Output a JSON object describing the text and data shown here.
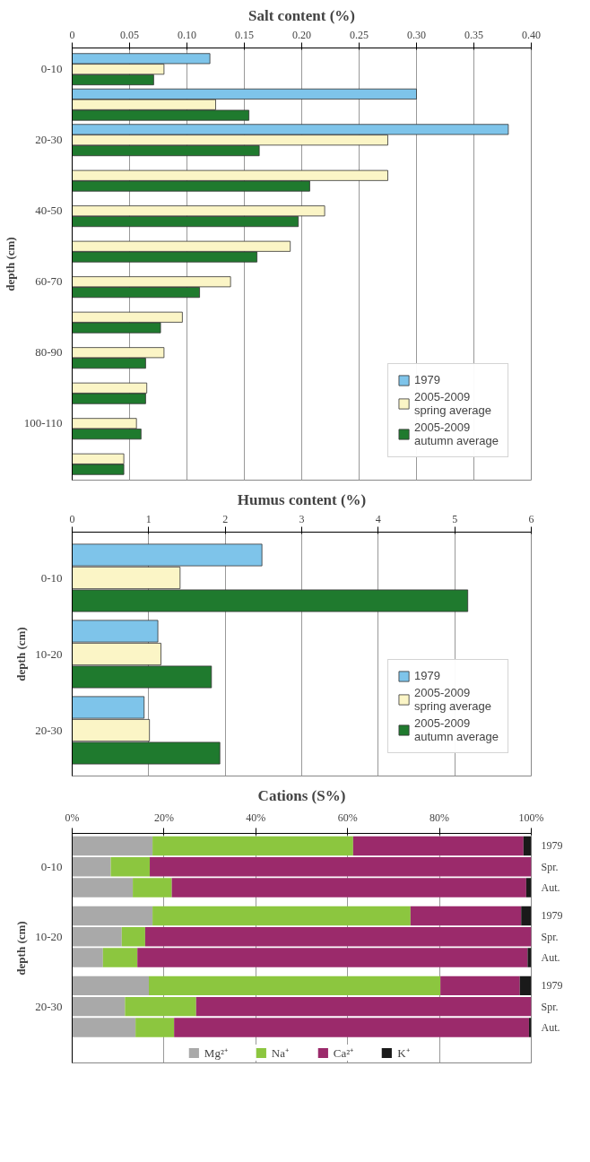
{
  "chart_data": [
    {
      "type": "bar",
      "orientation": "horizontal",
      "title": "Salt content (%)",
      "ylabel": "depth (cm)",
      "categories": [
        "0-10",
        null,
        "20-30",
        null,
        "40-50",
        null,
        "60-70",
        null,
        "80-90",
        null,
        "100-110",
        null
      ],
      "series": [
        {
          "name": "1979",
          "color": "#7ec4ea",
          "values": [
            0.12,
            0.3,
            0.38,
            null,
            null,
            null,
            null,
            null,
            null,
            null,
            null,
            null
          ]
        },
        {
          "name": "2005-2009\nspring average",
          "color": "#fbf5c6",
          "values": [
            0.08,
            0.125,
            0.275,
            0.275,
            0.22,
            0.19,
            0.138,
            0.096,
            0.08,
            0.065,
            0.056,
            0.045
          ]
        },
        {
          "name": "2005-2009\nautumn average",
          "color": "#1f7a2e",
          "values": [
            0.071,
            0.154,
            0.163,
            0.207,
            0.197,
            0.161,
            0.111,
            0.077,
            0.064,
            0.064,
            0.06,
            0.045
          ]
        }
      ],
      "xlim": [
        0,
        0.4
      ],
      "xticks": [
        {
          "value": 0,
          "label": "0"
        },
        0.05,
        {
          "value": 0.1,
          "label": "0.10"
        },
        0.15,
        {
          "value": 0.2,
          "label": "0.20"
        },
        0.25,
        {
          "value": 0.3,
          "label": "0.30"
        },
        0.35,
        {
          "value": 0.4,
          "label": "0.40"
        }
      ],
      "grid": "x",
      "legend": "bottom right"
    },
    {
      "type": "bar",
      "orientation": "horizontal",
      "title": "Humus content (%)",
      "ylabel": "depth (cm)",
      "categories": [
        "0-10",
        "10-20",
        "20-30"
      ],
      "series": [
        {
          "name": "1979",
          "color": "#7ec4ea",
          "values": [
            2.48,
            1.12,
            0.94
          ]
        },
        {
          "name": "2005-2009\nspring average",
          "color": "#fbf5c6",
          "values": [
            1.41,
            1.16,
            1.01
          ]
        },
        {
          "name": "2005-2009\nautumn average",
          "color": "#1f7a2e",
          "values": [
            5.17,
            1.82,
            1.93
          ]
        }
      ],
      "xlim": [
        0,
        6
      ],
      "xticks": [
        0,
        1,
        2,
        3,
        4,
        5,
        6
      ],
      "grid": "x",
      "legend": "bottom right"
    },
    {
      "type": "bar",
      "orientation": "horizontal",
      "stacked": true,
      "title": "Cations (S%)",
      "ylabel": "depth (cm)",
      "categories": [
        "1979",
        "Spr.",
        "Aut.",
        "1979",
        "Spr.",
        "Aut.",
        "1979",
        "Spr.",
        "Aut."
      ],
      "annotations": [
        "0-10",
        "10-20",
        "20-30"
      ],
      "series": [
        {
          "name": "Mg²⁺",
          "color": "#a9a9a9",
          "values": [
            17.5,
            8.4,
            13.2,
            17.5,
            10.8,
            6.7,
            16.7,
            11.5,
            13.8
          ]
        },
        {
          "name": "Na⁺",
          "color": "#8cc63f",
          "values": [
            43.7,
            8.5,
            8.5,
            56.2,
            5.1,
            7.5,
            63.5,
            15.5,
            8.4
          ]
        },
        {
          "name": "Ca²⁺",
          "color": "#9b2a6b",
          "values": [
            37.1,
            83.1,
            77.2,
            24.1,
            84.1,
            85.0,
            17.3,
            73.0,
            77.3
          ]
        },
        {
          "name": "K⁺",
          "color": "#1a1a1a",
          "values": [
            1.8,
            0,
            1.1,
            2.3,
            0,
            0.8,
            2.5,
            0,
            0.5
          ]
        }
      ],
      "xlim": [
        0,
        100
      ],
      "xticks": [
        {
          "value": 0,
          "label": "0%"
        },
        {
          "value": 20,
          "label": "20%"
        },
        {
          "value": 40,
          "label": "40%"
        },
        {
          "value": 60,
          "label": "60%"
        },
        {
          "value": 80,
          "label": "80%"
        },
        {
          "value": 100,
          "label": "100%"
        }
      ],
      "grid": "x",
      "legend": "bottom"
    }
  ]
}
